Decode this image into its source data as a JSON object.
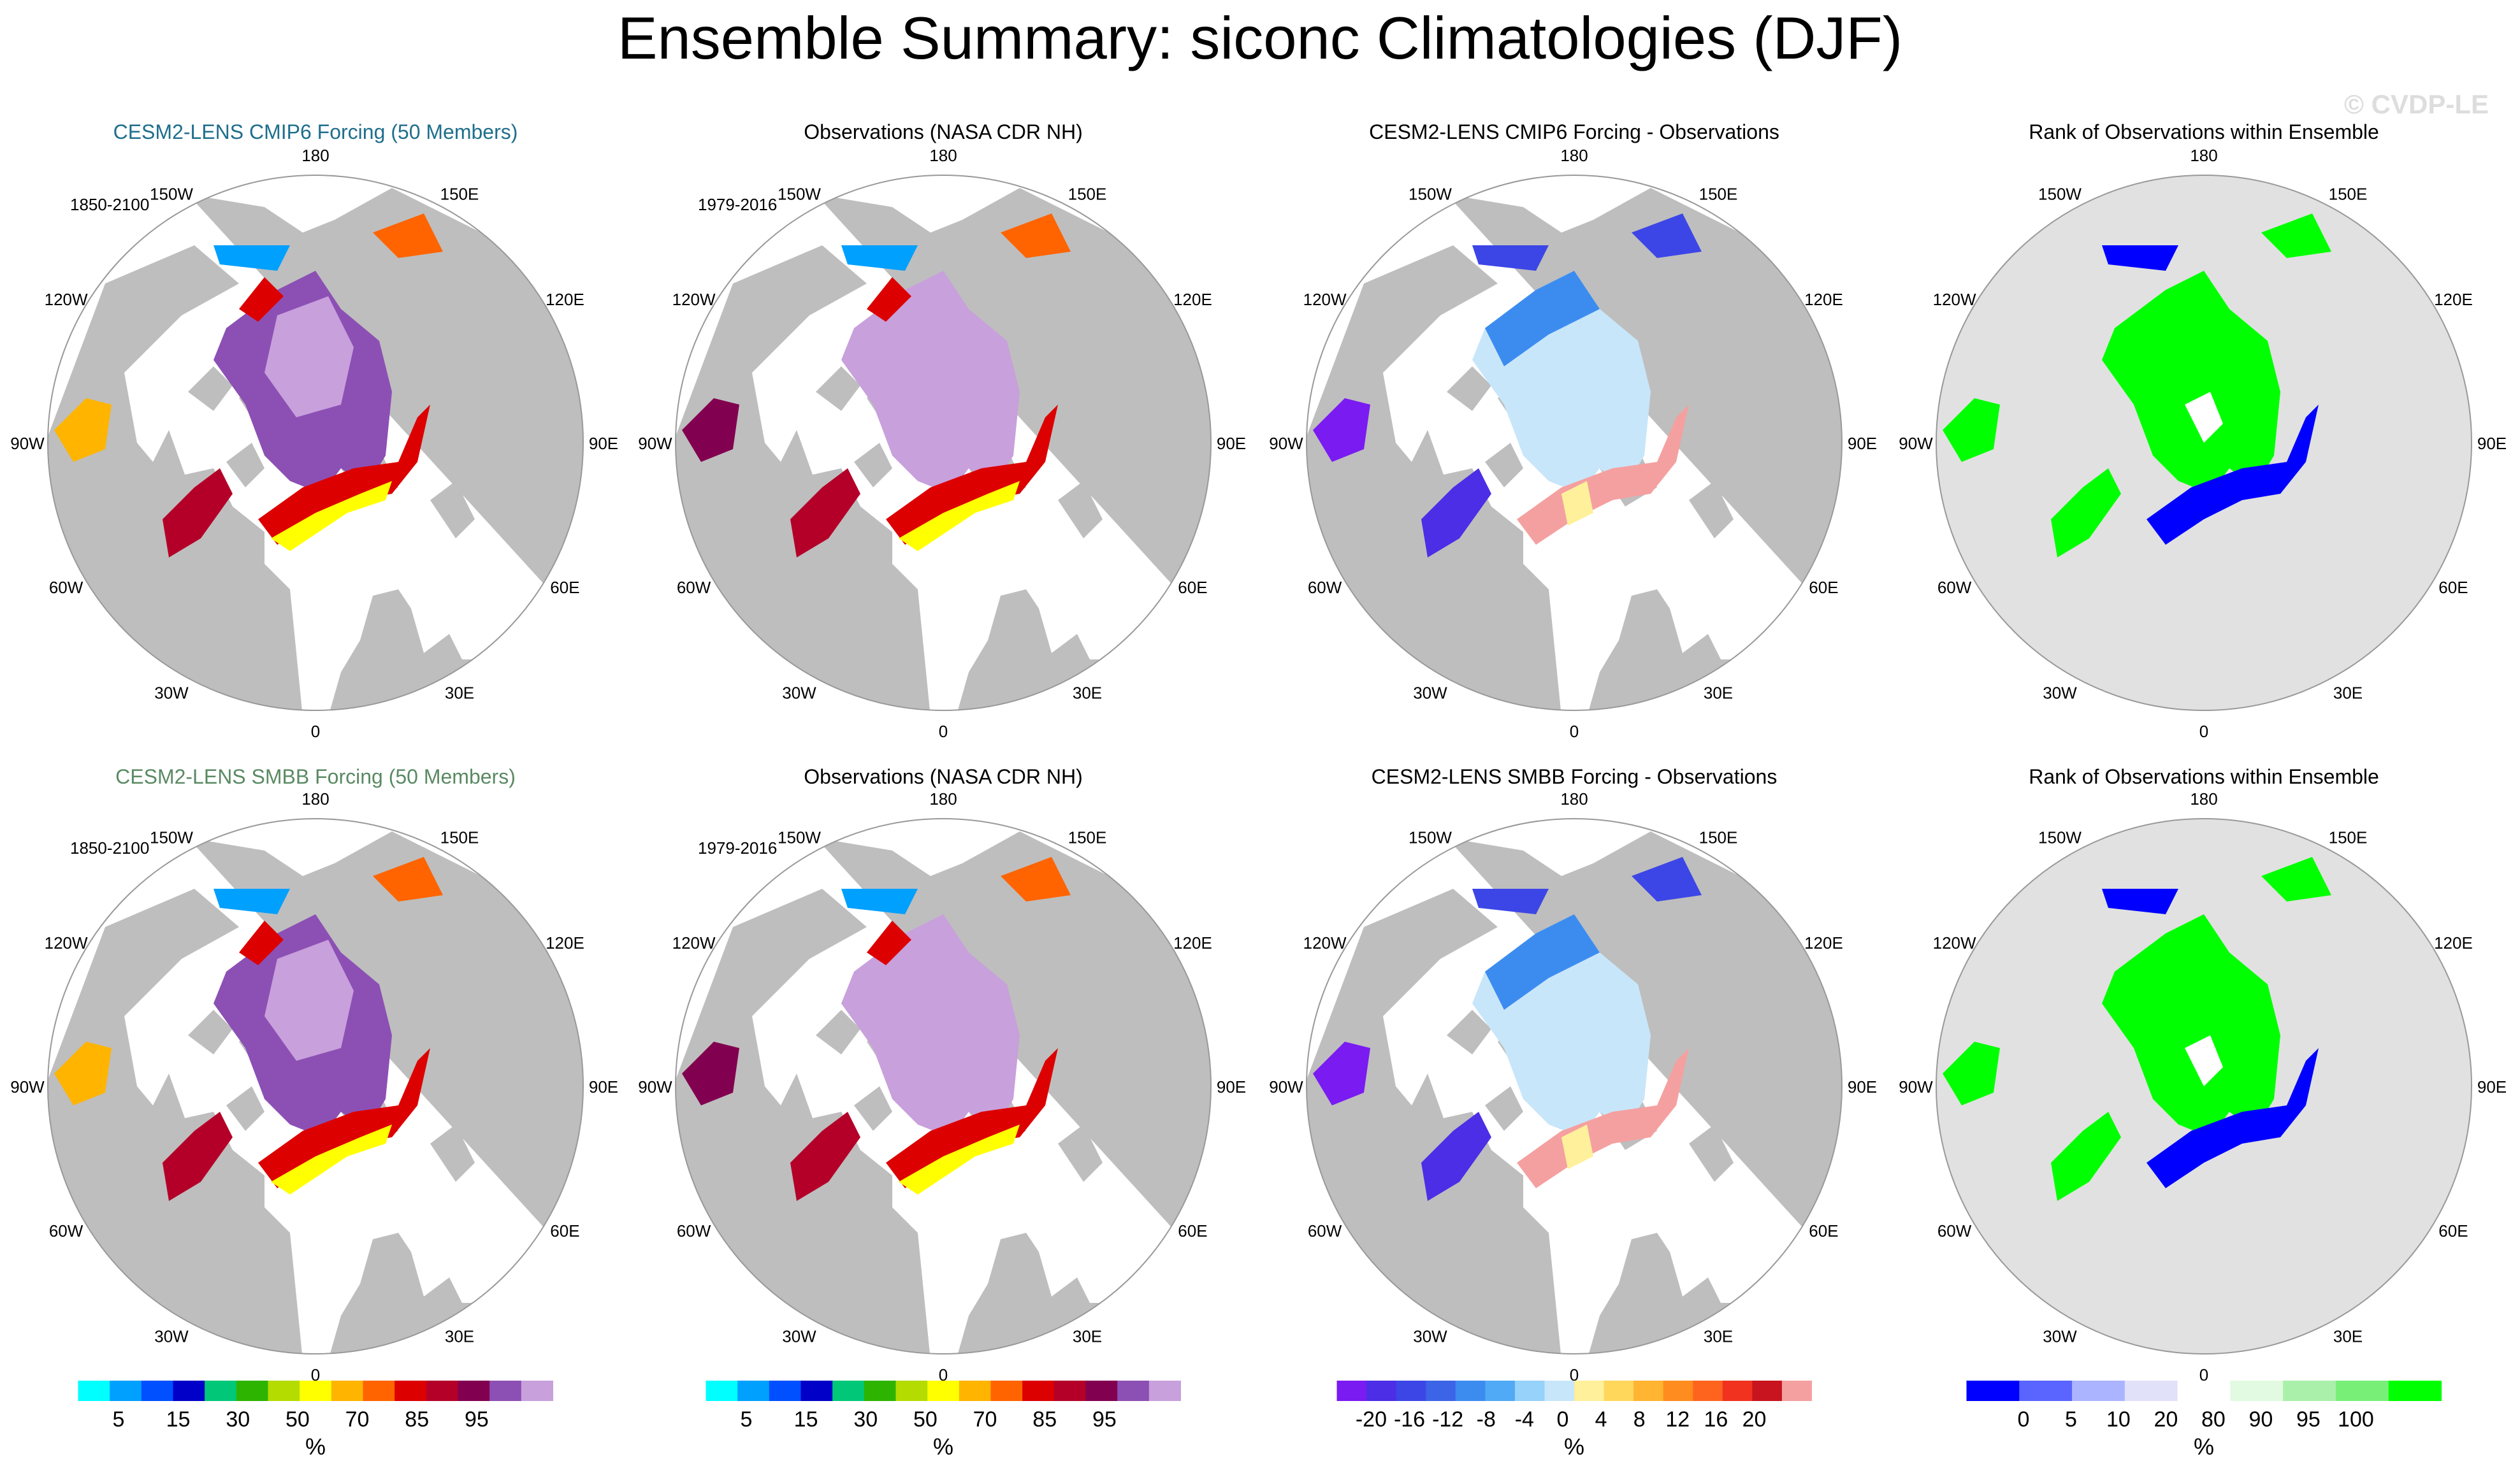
{
  "title": "Ensemble Summary: siconc Climatologies (DJF)",
  "watermark": "© CVDP-LE",
  "colors": {
    "land": "#bebebe",
    "ocean": "#ffffff",
    "rank_bg": "#e1e1e1",
    "title_cmip6": "#1f6e8c",
    "title_smbb": "#5a8a63"
  },
  "lon_labels": [
    "180",
    "150E",
    "120E",
    "90E",
    "60E",
    "30E",
    "0",
    "30W",
    "60W",
    "90W",
    "120W",
    "150W"
  ],
  "panels": [
    {
      "title": "CESM2-LENS CMIP6 Forcing (50 Members)",
      "title_color": "#1f6e8c",
      "period": "1850-2100",
      "kind": "model"
    },
    {
      "title": "Observations (NASA CDR NH)",
      "title_color": "#000000",
      "period": "1979-2016",
      "kind": "obs"
    },
    {
      "title": "CESM2-LENS CMIP6 Forcing - Observations",
      "title_color": "#000000",
      "period": "",
      "kind": "diff"
    },
    {
      "title": "Rank of Observations within Ensemble",
      "title_color": "#000000",
      "period": "",
      "kind": "rank"
    },
    {
      "title": "CESM2-LENS SMBB Forcing (50 Members)",
      "title_color": "#5a8a63",
      "period": "1850-2100",
      "kind": "model"
    },
    {
      "title": "Observations (NASA CDR NH)",
      "title_color": "#000000",
      "period": "1979-2016",
      "kind": "obs"
    },
    {
      "title": "CESM2-LENS SMBB Forcing - Observations",
      "title_color": "#000000",
      "period": "",
      "kind": "diff"
    },
    {
      "title": "Rank of Observations within Ensemble",
      "title_color": "#000000",
      "period": "",
      "kind": "rank"
    }
  ],
  "colorbars": [
    {
      "unit": "%",
      "colors": [
        "#00ffff",
        "#00a0ff",
        "#0050ff",
        "#0000c8",
        "#00c878",
        "#2db400",
        "#b4dc00",
        "#ffff00",
        "#ffb400",
        "#ff6400",
        "#dc0000",
        "#b40028",
        "#820050",
        "#8c50b4",
        "#c8a0dc"
      ],
      "labels": [
        "5",
        "15",
        "30",
        "50",
        "70",
        "85",
        "95"
      ]
    },
    {
      "unit": "%",
      "colors": [
        "#00ffff",
        "#00a0ff",
        "#0050ff",
        "#0000c8",
        "#00c878",
        "#2db400",
        "#b4dc00",
        "#ffff00",
        "#ffb400",
        "#ff6400",
        "#dc0000",
        "#b40028",
        "#820050",
        "#8c50b4",
        "#c8a0dc"
      ],
      "labels": [
        "5",
        "15",
        "30",
        "50",
        "70",
        "85",
        "95"
      ]
    },
    {
      "unit": "%",
      "colors": [
        "#7a1bf2",
        "#4b2ee6",
        "#3c46e6",
        "#3c64e6",
        "#3c8cf0",
        "#50aaf5",
        "#96d2fa",
        "#c8e6fa",
        "#fff09b",
        "#ffd75a",
        "#ffb432",
        "#ff8c1e",
        "#ff641e",
        "#f0321e",
        "#c8141e",
        "#f5a0a0"
      ],
      "labels": [
        "-20",
        "-16",
        "-12",
        "-8",
        "-4",
        "0",
        "4",
        "8",
        "12",
        "16",
        "20"
      ]
    },
    {
      "unit": "%",
      "colors": [
        "#0000ff",
        "#5a64ff",
        "#aab4ff",
        "#e1e1fa",
        "#ffffff",
        "#e1fae1",
        "#aaf0aa",
        "#78f078",
        "#00ff00"
      ],
      "labels": [
        "0",
        "5",
        "10",
        "20",
        "80",
        "90",
        "95",
        "100"
      ]
    }
  ],
  "chart_data": [
    {
      "type": "polar-map",
      "title": "CESM2-LENS CMIP6 Forcing (50 Members)",
      "variable": "siconc",
      "season": "DJF",
      "period": "1850-2100",
      "units": "%",
      "levels": [
        5,
        10,
        15,
        20,
        30,
        40,
        50,
        60,
        70,
        80,
        85,
        90,
        95,
        99
      ]
    },
    {
      "type": "polar-map",
      "title": "Observations (NASA CDR NH)",
      "variable": "siconc",
      "season": "DJF",
      "period": "1979-2016",
      "units": "%",
      "levels": [
        5,
        10,
        15,
        20,
        30,
        40,
        50,
        60,
        70,
        80,
        85,
        90,
        95,
        99
      ]
    },
    {
      "type": "polar-map",
      "title": "CESM2-LENS CMIP6 Forcing - Observations",
      "variable": "siconc",
      "season": "DJF",
      "units": "%",
      "levels": [
        -20,
        -18,
        -16,
        -14,
        -12,
        -10,
        -8,
        -6,
        -4,
        -2,
        0,
        2,
        4,
        6,
        8,
        10,
        12,
        14,
        16,
        18,
        20
      ]
    },
    {
      "type": "polar-map",
      "title": "Rank of Observations within Ensemble",
      "variable": "siconc",
      "season": "DJF",
      "units": "%",
      "levels": [
        0,
        5,
        10,
        20,
        80,
        90,
        95,
        100
      ]
    },
    {
      "type": "polar-map",
      "title": "CESM2-LENS SMBB Forcing (50 Members)",
      "variable": "siconc",
      "season": "DJF",
      "period": "1850-2100",
      "units": "%",
      "levels": [
        5,
        10,
        15,
        20,
        30,
        40,
        50,
        60,
        70,
        80,
        85,
        90,
        95,
        99
      ]
    },
    {
      "type": "polar-map",
      "title": "Observations (NASA CDR NH)",
      "variable": "siconc",
      "season": "DJF",
      "period": "1979-2016",
      "units": "%",
      "levels": [
        5,
        10,
        15,
        20,
        30,
        40,
        50,
        60,
        70,
        80,
        85,
        90,
        95,
        99
      ]
    },
    {
      "type": "polar-map",
      "title": "CESM2-LENS SMBB Forcing - Observations",
      "variable": "siconc",
      "season": "DJF",
      "units": "%",
      "levels": [
        -20,
        -18,
        -16,
        -14,
        -12,
        -10,
        -8,
        -6,
        -4,
        -2,
        0,
        2,
        4,
        6,
        8,
        10,
        12,
        14,
        16,
        18,
        20
      ]
    },
    {
      "type": "polar-map",
      "title": "Rank of Observations within Ensemble",
      "variable": "siconc",
      "season": "DJF",
      "units": "%",
      "levels": [
        0,
        5,
        10,
        20,
        80,
        90,
        95,
        100
      ]
    }
  ]
}
